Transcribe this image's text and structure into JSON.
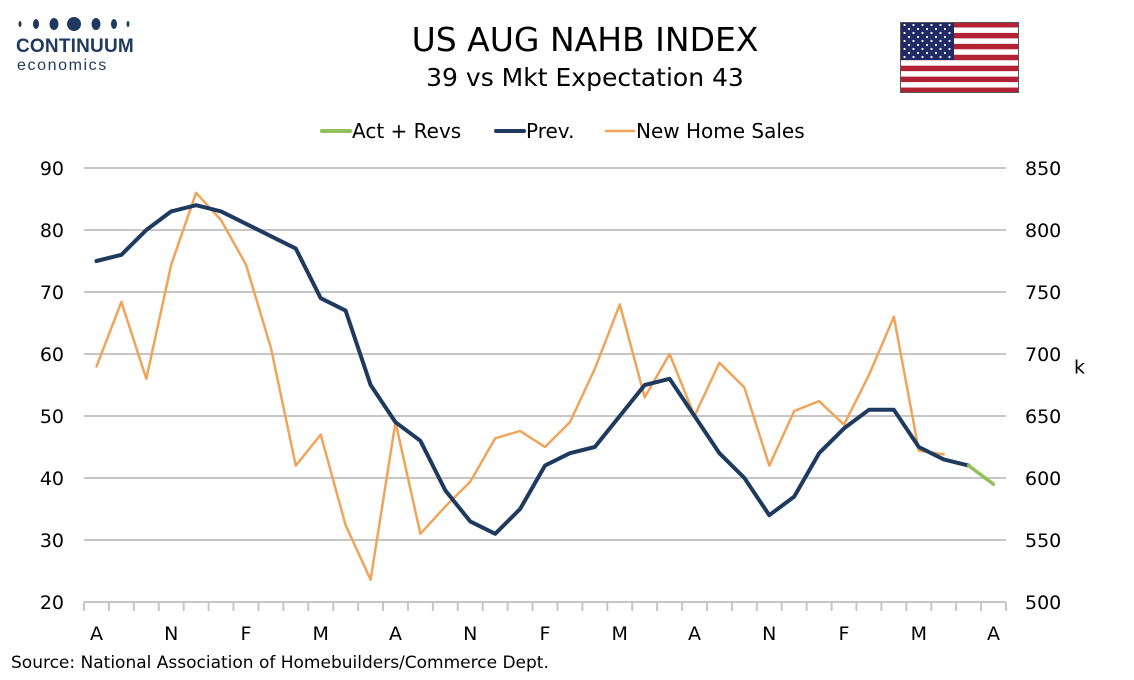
{
  "header": {
    "brand": "CONTINUUM",
    "brand_sub": "economics",
    "title": "US AUG NAHB INDEX",
    "subtitle": "39 vs Mkt Expectation 43",
    "flag_icon": "us-flag-icon"
  },
  "source": "Source: National Association of Homebuilders/Commerce Dept.",
  "chart_data": {
    "type": "line",
    "x_tick_labels": [
      "A",
      "N",
      "F",
      "M",
      "A",
      "N",
      "F",
      "M",
      "A",
      "N",
      "F",
      "M",
      "A"
    ],
    "y_left": {
      "min": 20,
      "max": 90,
      "step": 10
    },
    "y_right": {
      "min": 500,
      "max": 850,
      "step": 50,
      "label": "k"
    },
    "legend": {
      "placement": "top"
    },
    "grid": true,
    "series": [
      {
        "name": "Act + Revs",
        "axis": "left",
        "color": "#92c05a",
        "width": 3.5,
        "start_index": 35,
        "values": [
          42,
          39
        ]
      },
      {
        "name": "Prev.",
        "axis": "left",
        "color": "#1e3a5f",
        "width": 4,
        "start_index": 0,
        "values": [
          75,
          76,
          80,
          83,
          84,
          83,
          81,
          79,
          77,
          69,
          67,
          55,
          49,
          46,
          38,
          33,
          31,
          35,
          42,
          44,
          45,
          50,
          55,
          56,
          50,
          44,
          40,
          34,
          37,
          44,
          48,
          51,
          51,
          45,
          43,
          42
        ]
      },
      {
        "name": "New Home Sales",
        "axis": "right",
        "color": "#f0a45a",
        "width": 2.5,
        "start_index": 0,
        "values": [
          690,
          742,
          680,
          772,
          830,
          808,
          772,
          705,
          610,
          635,
          562,
          518,
          645,
          555,
          577,
          597,
          632,
          638,
          625,
          645,
          688,
          740,
          665,
          700,
          650,
          693,
          673,
          610,
          654,
          662,
          643,
          683,
          730,
          622,
          619
        ]
      }
    ]
  }
}
